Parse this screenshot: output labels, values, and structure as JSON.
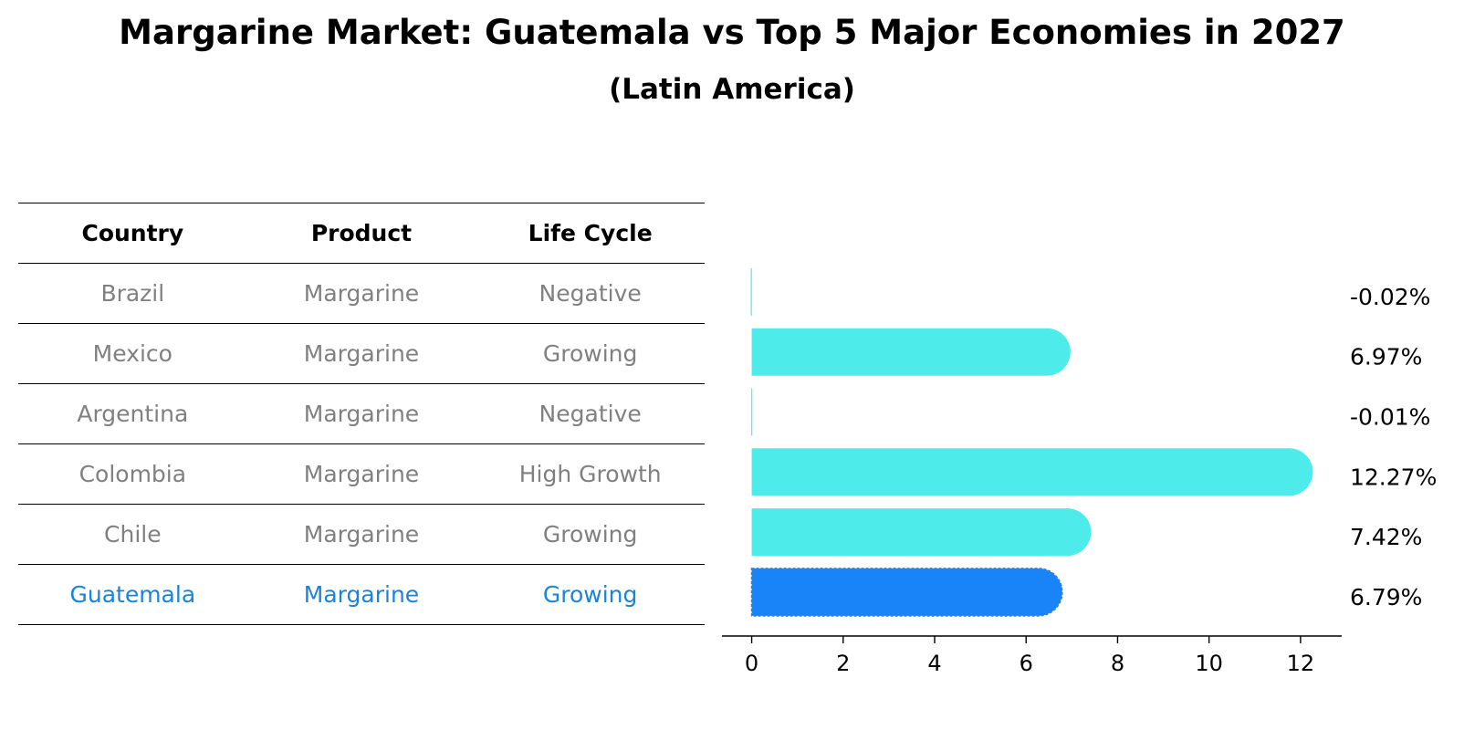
{
  "chart_data": {
    "type": "bar",
    "orientation": "horizontal",
    "title": "Margarine Market: Guatemala vs Top 5 Major Economies in 2027",
    "subtitle": "(Latin America)",
    "table": {
      "columns": [
        "Country",
        "Product",
        "Life Cycle"
      ],
      "rows": [
        [
          "Brazil",
          "Margarine",
          "Negative"
        ],
        [
          "Mexico",
          "Margarine",
          "Growing"
        ],
        [
          "Argentina",
          "Margarine",
          "Negative"
        ],
        [
          "Colombia",
          "Margarine",
          "High Growth"
        ],
        [
          "Chile",
          "Margarine",
          "Growing"
        ],
        [
          "Guatemala",
          "Margarine",
          "Growing"
        ]
      ],
      "highlight_row": 5
    },
    "categories": [
      "Brazil",
      "Mexico",
      "Argentina",
      "Colombia",
      "Chile",
      "Guatemala"
    ],
    "values": [
      -0.02,
      6.97,
      -0.01,
      12.27,
      7.42,
      6.79
    ],
    "value_labels": [
      "-0.02%",
      "6.97%",
      "-0.01%",
      "12.27%",
      "7.42%",
      "6.79%"
    ],
    "xlim": [
      -0.65,
      12.9
    ],
    "xticks": [
      0,
      2,
      4,
      6,
      8,
      10,
      12
    ],
    "grid": false,
    "colors": {
      "bar": "#4deceb",
      "highlight_bar": "#1884f7",
      "highlight_text": "#1a84d8",
      "row_text": "#808080"
    }
  }
}
